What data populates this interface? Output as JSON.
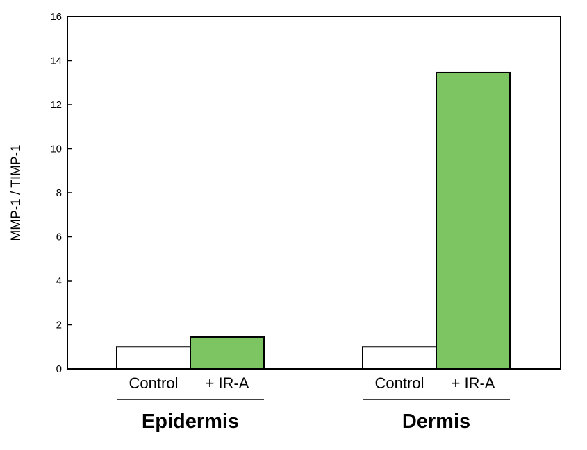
{
  "chart_data": {
    "type": "bar",
    "ylabel": "MMP-1 / TIMP-1",
    "ylim": [
      0,
      16
    ],
    "yticks": [
      0,
      2,
      4,
      6,
      8,
      10,
      12,
      14,
      16
    ],
    "grid": false,
    "groups": [
      {
        "name": "Epidermis",
        "bars": [
          {
            "label": "Control",
            "value": 1.0,
            "color": "#ffffff"
          },
          {
            "label": "+ IR-A",
            "value": 1.45,
            "color": "#7dc462"
          }
        ]
      },
      {
        "name": "Dermis",
        "bars": [
          {
            "label": "Control",
            "value": 1.0,
            "color": "#ffffff"
          },
          {
            "label": "+ IR-A",
            "value": 13.45,
            "color": "#7dc462"
          }
        ]
      }
    ]
  }
}
